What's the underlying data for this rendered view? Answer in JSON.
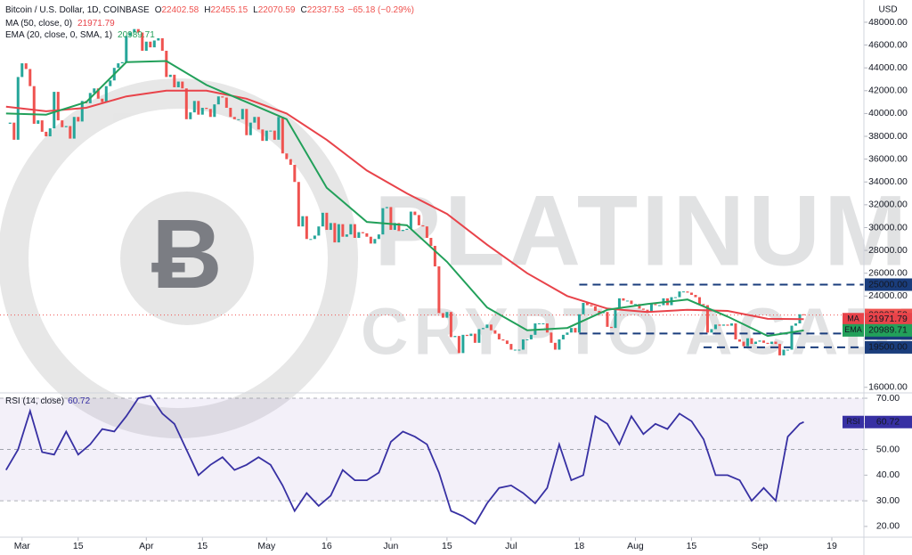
{
  "chart_data": {
    "type": "candlestick",
    "title": "Bitcoin / U.S. Dollar, 1D, COINBASE",
    "ohlc": [
      {
        "label": "O",
        "value": 22402.58
      },
      {
        "label": "H",
        "value": 22455.15
      },
      {
        "label": "L",
        "value": 22070.59
      },
      {
        "label": "C",
        "value": 22337.53
      }
    ],
    "change": "−65.18 (−0.29%)",
    "currency": "USD",
    "up_color": "#26a69a",
    "down_color": "#ef5350",
    "close": [
      39100,
      39200,
      37700,
      43200,
      44400,
      43900,
      42400,
      39100,
      39400,
      38400,
      38000,
      38700,
      41900,
      39400,
      38800,
      38900,
      37800,
      39700,
      39300,
      41100,
      40900,
      41800,
      42200,
      41300,
      41000,
      42400,
      42900,
      44000,
      44400,
      44500,
      46800,
      47100,
      47400,
      47100,
      45500,
      46300,
      45800,
      46400,
      46600,
      45500,
      43200,
      43400,
      42300,
      42800,
      42200,
      39500,
      40100,
      41100,
      39900,
      40500,
      40400,
      39700,
      40800,
      41500,
      41400,
      40500,
      39700,
      39500,
      39500,
      40400,
      38100,
      39200,
      39700,
      38600,
      37600,
      38500,
      38500,
      37700,
      39700,
      36500,
      36000,
      35500,
      34000,
      30100,
      31000,
      29000,
      29000,
      29300,
      30100,
      31300,
      29800,
      30400,
      28700,
      30300,
      29200,
      29400,
      30300,
      29100,
      29600,
      29500,
      29200,
      28600,
      29000,
      29400,
      31700,
      31800,
      29800,
      30400,
      29700,
      29800,
      29900,
      31400,
      31100,
      30200,
      30100,
      29100,
      28400,
      26600,
      22500,
      22100,
      22600,
      20400,
      20500,
      19000,
      20600,
      20500,
      20700,
      19900,
      21100,
      21200,
      21500,
      21000,
      20700,
      20200,
      20100,
      19800,
      19300,
      19300,
      19300,
      20200,
      20200,
      20600,
      21600,
      21600,
      21600,
      20800,
      19900,
      19300,
      20200,
      20600,
      20800,
      21200,
      20800,
      22400,
      23400,
      23200,
      23100,
      22700,
      22500,
      22600,
      21300,
      21200,
      22900,
      23800,
      23600,
      23600,
      23300,
      23300,
      22900,
      22800,
      22600,
      23300,
      23200,
      23200,
      23800,
      23200,
      23900,
      23900,
      24400,
      24400,
      24300,
      24100,
      23900,
      23300,
      23200,
      20800,
      21100,
      21500,
      21400,
      21500,
      21400,
      21600,
      20200,
      20000,
      19600,
      20300,
      19800,
      20000,
      20100,
      19900,
      19800,
      20000,
      19800,
      18800,
      19300,
      19300,
      21400,
      21600,
      22402.71,
      22337.53
    ],
    "xlim": [
      -1.5,
      214
    ],
    "xticks": [
      {
        "value": 4,
        "label": "Mar"
      },
      {
        "value": 18,
        "label": "15"
      },
      {
        "value": 35,
        "label": "Apr"
      },
      {
        "value": 49,
        "label": "15"
      },
      {
        "value": 65,
        "label": "May"
      },
      {
        "value": 80,
        "label": "16"
      },
      {
        "value": 96,
        "label": "Jun"
      },
      {
        "value": 110,
        "label": "15"
      },
      {
        "value": 126,
        "label": "Jul"
      },
      {
        "value": 143,
        "label": "18"
      },
      {
        "value": 157,
        "label": "Aug"
      },
      {
        "value": 171,
        "label": "15"
      },
      {
        "value": 188,
        "label": "Sep"
      },
      {
        "value": 206,
        "label": "19"
      }
    ],
    "ylim": [
      15200,
      49950
    ],
    "yticks": [
      {
        "value": 48000,
        "label": "48000.00"
      },
      {
        "value": 46000,
        "label": "46000.00"
      },
      {
        "value": 44000,
        "label": "44000.00"
      },
      {
        "value": 42000,
        "label": "42000.00"
      },
      {
        "value": 40000,
        "label": "40000.00"
      },
      {
        "value": 38000,
        "label": "38000.00"
      },
      {
        "value": 36000,
        "label": "36000.00"
      },
      {
        "value": 34000,
        "label": "34000.00"
      },
      {
        "value": 32000,
        "label": "32000.00"
      },
      {
        "value": 30000,
        "label": "30000.00"
      },
      {
        "value": 28000,
        "label": "28000.00"
      },
      {
        "value": 26000,
        "label": "26000.00"
      },
      {
        "value": 24000,
        "label": "24000.00"
      },
      {
        "value": 16000,
        "label": "16000.00"
      }
    ],
    "series": [
      {
        "name": "MA",
        "legend": "MA (50, close, 0)",
        "color": "#e8434a",
        "x": [
          0,
          10,
          20,
          30,
          40,
          50,
          60,
          70,
          80,
          90,
          100,
          110,
          120,
          130,
          140,
          150,
          160,
          170,
          180,
          190,
          199
        ],
        "values": [
          40600,
          40200,
          40500,
          41500,
          42000,
          42000,
          41300,
          40000,
          37700,
          35000,
          33000,
          31200,
          28500,
          26000,
          24000,
          22900,
          22600,
          22800,
          22700,
          22000,
          21971.79
        ]
      },
      {
        "name": "EMA",
        "legend": "EMA (20, close, 0, SMA, 1)",
        "color": "#22a05a",
        "x": [
          0,
          10,
          20,
          30,
          40,
          50,
          60,
          70,
          80,
          90,
          100,
          110,
          120,
          130,
          140,
          150,
          160,
          170,
          180,
          190,
          199
        ],
        "values": [
          40000,
          39900,
          41000,
          44500,
          44600,
          42500,
          41000,
          39500,
          33500,
          30500,
          30200,
          27000,
          23000,
          21000,
          21200,
          22800,
          23300,
          23700,
          22200,
          20500,
          20989.71
        ]
      }
    ],
    "levels": [
      {
        "value": 25000,
        "label": "25000.00",
        "x_from": 143
      },
      {
        "value": 20715,
        "label": "20715.00",
        "x_from": 143
      },
      {
        "value": 19500,
        "label": "19500.00",
        "x_from": 174
      }
    ],
    "level_color": "#1a3d7c",
    "rsi": {
      "name": "RSI",
      "legend": "RSI (14, close)",
      "color": "#3730a3",
      "ylim": [
        15.8,
        71.4
      ],
      "yticks": [
        {
          "value": 70,
          "label": "70.00"
        },
        {
          "value": 60,
          "label": "60.00"
        },
        {
          "value": 50,
          "label": "50.00"
        },
        {
          "value": 40,
          "label": "40.00"
        },
        {
          "value": 30,
          "label": "30.00"
        },
        {
          "value": 20,
          "label": "20.00"
        }
      ],
      "band": [
        30,
        70
      ],
      "x": [
        0,
        3,
        6,
        9,
        12,
        15,
        18,
        21,
        24,
        27,
        30,
        33,
        36,
        39,
        42,
        45,
        48,
        51,
        54,
        57,
        60,
        63,
        66,
        69,
        72,
        75,
        78,
        81,
        84,
        87,
        90,
        93,
        96,
        99,
        102,
        105,
        108,
        111,
        114,
        117,
        120,
        123,
        126,
        129,
        132,
        135,
        138,
        141,
        144,
        147,
        150,
        153,
        156,
        159,
        162,
        165,
        168,
        171,
        174,
        177,
        180,
        183,
        186,
        189,
        192,
        195,
        198,
        199
      ],
      "values": [
        42,
        50,
        65,
        49,
        48,
        57,
        48,
        52,
        58,
        57,
        63,
        70,
        71,
        64,
        60,
        50,
        40,
        44,
        47,
        42,
        44,
        47,
        44,
        36,
        26,
        33,
        28,
        32,
        42,
        38,
        38,
        41,
        53,
        57,
        55,
        52,
        41,
        26,
        24,
        21,
        29,
        35,
        36,
        33,
        29,
        35,
        52,
        38,
        40,
        63,
        60,
        52,
        63,
        56,
        60,
        58,
        64,
        61,
        54,
        40,
        40,
        38,
        30,
        35,
        30,
        55,
        60,
        60.72
      ]
    },
    "watermark": [
      "PLATINUM",
      "CRYPTO ACADEMY"
    ]
  }
}
